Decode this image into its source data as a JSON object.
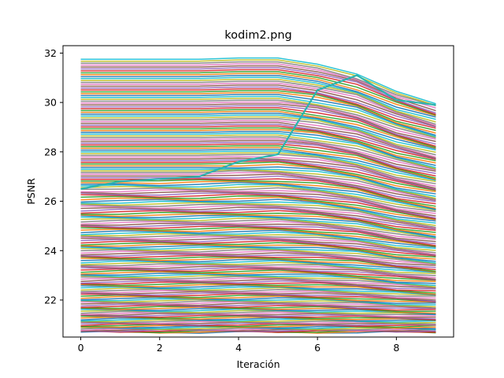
{
  "chart_data": {
    "type": "line",
    "title": "kodim2.png",
    "xlabel": "Iteración",
    "ylabel": "PSNR",
    "xlim": [
      -0.45,
      9.45
    ],
    "ylim": [
      20.5,
      32.3
    ],
    "xticks": [
      0,
      2,
      4,
      6,
      8
    ],
    "yticks": [
      22,
      24,
      26,
      28,
      30,
      32
    ],
    "x": [
      0,
      1,
      2,
      3,
      4,
      5,
      6,
      7,
      8,
      9
    ],
    "band_series": {
      "count": 190,
      "bottom": [
        20.7,
        20.7,
        20.7,
        20.7,
        20.7,
        20.7,
        20.7,
        20.7,
        20.7,
        20.7
      ],
      "top": [
        31.75,
        31.75,
        31.75,
        31.75,
        31.8,
        31.8,
        31.55,
        31.15,
        30.45,
        29.95
      ],
      "palette": [
        "#1f77b4",
        "#ff7f0e",
        "#2ca02c",
        "#d62728",
        "#9467bd",
        "#8c564b",
        "#e377c2",
        "#7f7f7f",
        "#bcbd22",
        "#17becf"
      ]
    },
    "highlight_series": {
      "color": "#2ab5b0",
      "values": [
        26.5,
        26.8,
        26.9,
        27.0,
        27.6,
        27.9,
        30.5,
        31.1,
        30.1,
        29.9
      ]
    },
    "grid": false,
    "legend": "none"
  }
}
